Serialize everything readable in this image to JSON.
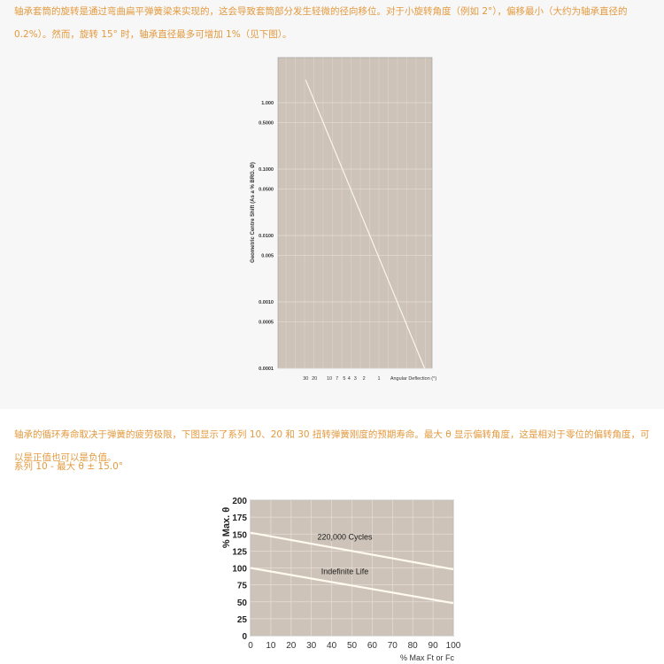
{
  "text": {
    "intro": "轴承套筒的旋转是通过弯曲扁平弹簧梁来实现的，这会导致套筒部分发生轻微的径向移位。对于小旋转角度（例如 2°），偏移最小（大约为轴承直径的 0.2%）。然而，旋转 15° 时，轴承直径最多可增加 1%（见下图）。",
    "life": "轴承的循环寿命取决于弹簧的疲劳极限，下图显示了系列 10、20 和 30 扭转弹簧刚度的预期寿命。最大 θ 显示偏转角度，这是相对于零位的偏转角度，可以是正值也可以是负值。",
    "series_heading": "系列 10 - 最大 θ ± 15.0°"
  },
  "colors": {
    "text": "#e39a3f",
    "plot_bg": "#cdc3b8",
    "grid": "#e6dfd7",
    "line": "#fbf6ea"
  },
  "chart_data": [
    {
      "type": "line",
      "ylabel": "Geometric Centre Shift (As a % BRG. Ø)",
      "xlabel": "Angular Deflection (°)",
      "yscale": "log",
      "xscale": "log-reversed",
      "ylim": [
        0.0001,
        5
      ],
      "y_ticks": [
        "1.000",
        "0.5000",
        "0.1000",
        "0.0500",
        "0.0100",
        "0.005",
        "0.0010",
        "0.0005",
        "0.0001"
      ],
      "x_ticks": [
        "30",
        "20",
        "10",
        "7",
        "5",
        "4",
        "3",
        "2",
        "1"
      ],
      "grid": true,
      "series": [
        {
          "x": [
            30,
            0.12
          ],
          "y": [
            2.2,
            0.0001
          ]
        }
      ]
    },
    {
      "type": "line",
      "ylabel": "% Max. θ",
      "xlabel": "% Max Ft or Fc",
      "xlim": [
        0,
        100
      ],
      "ylim": [
        0,
        200
      ],
      "x_ticks": [
        "0",
        "10",
        "20",
        "30",
        "40",
        "50",
        "60",
        "70",
        "80",
        "90",
        "100"
      ],
      "y_ticks": [
        "0",
        "25",
        "50",
        "75",
        "100",
        "125",
        "150",
        "175",
        "200"
      ],
      "grid": true,
      "series": [
        {
          "name": "220,000 Cycles",
          "x": [
            0,
            100
          ],
          "y": [
            152,
            98
          ]
        },
        {
          "name": "Indefinite Life",
          "x": [
            0,
            100
          ],
          "y": [
            100,
            48
          ]
        }
      ]
    }
  ]
}
